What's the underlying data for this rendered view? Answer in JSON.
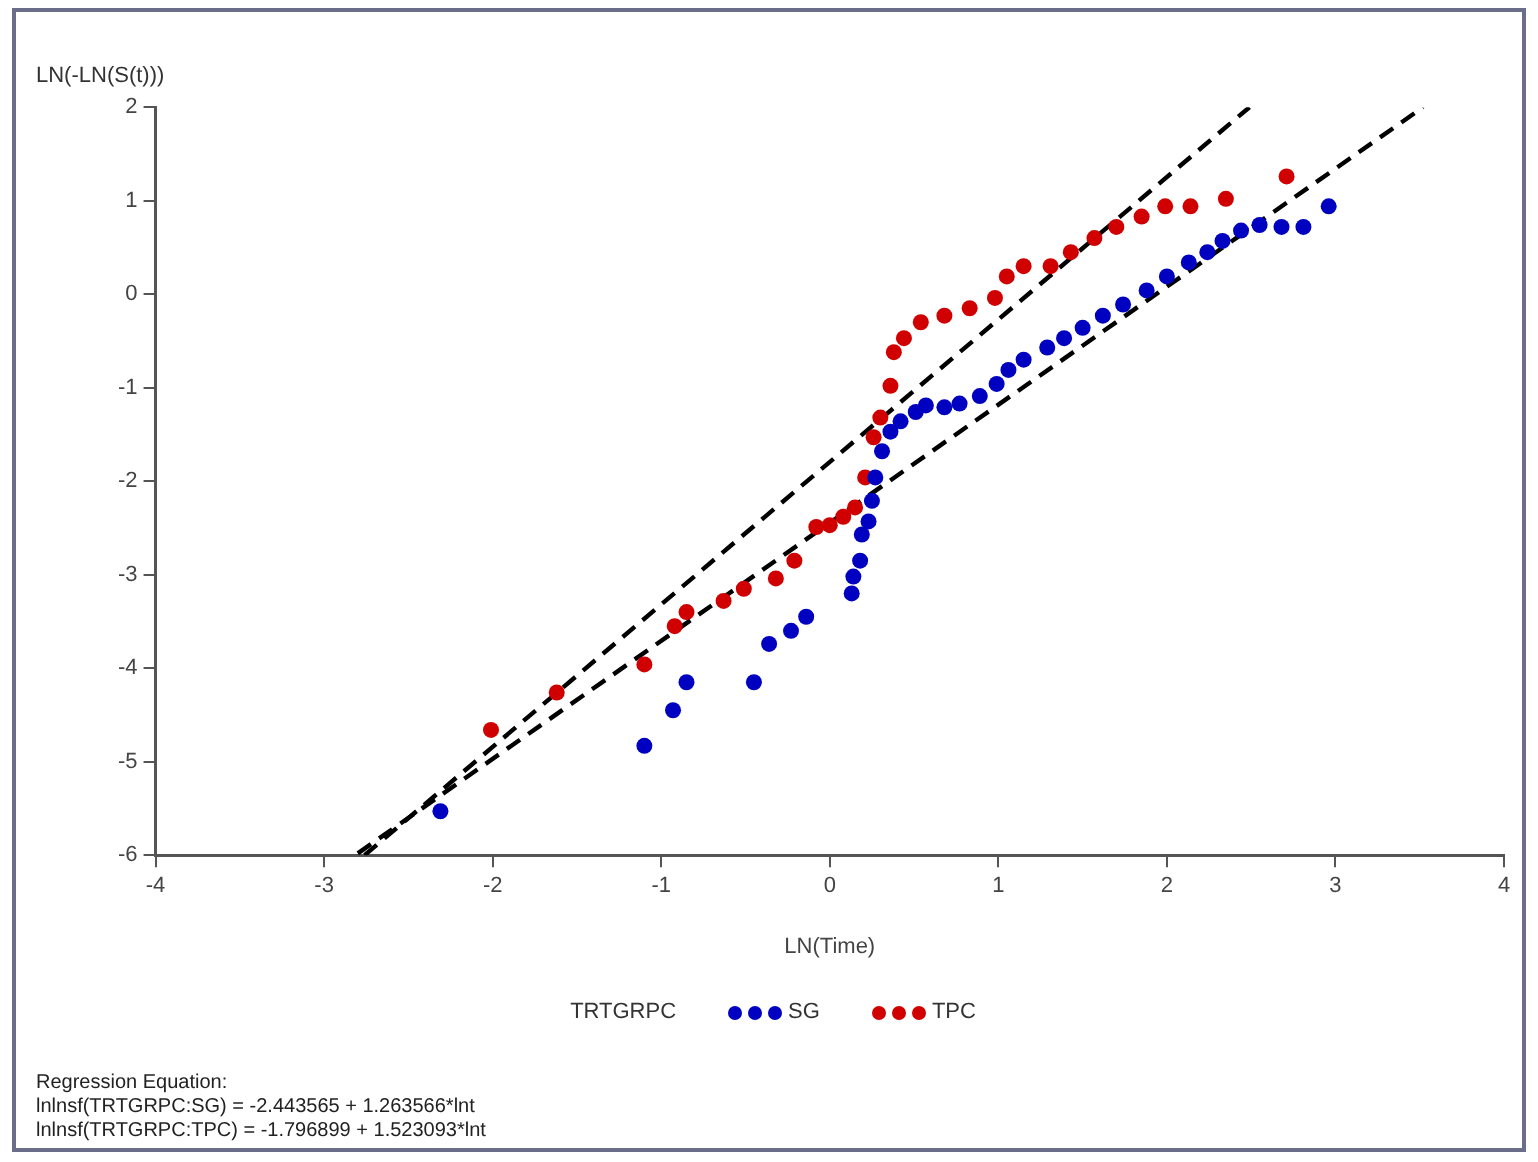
{
  "chart_data": {
    "type": "scatter",
    "xlabel": "LN(Time)",
    "ylabel": "LN(-LN(S(t)))",
    "legend_title": "TRTGRPC",
    "legend": "bottom",
    "grid": false,
    "marker": "circle",
    "xlim": [
      -4,
      4
    ],
    "xticks": [
      -4,
      -3,
      -2,
      -1,
      0,
      1,
      2,
      3,
      4
    ],
    "ylim": [
      -6,
      2
    ],
    "yticks": [
      -6,
      -5,
      -4,
      -3,
      -2,
      -1,
      0,
      1,
      2
    ],
    "series": [
      {
        "name": "SG",
        "color": "#0000c0",
        "x": [
          -2.31,
          -1.1,
          -0.93,
          -0.85,
          -0.45,
          -0.36,
          -0.23,
          -0.14,
          0.13,
          0.14,
          0.18,
          0.19,
          0.23,
          0.25,
          0.27,
          0.31,
          0.36,
          0.42,
          0.51,
          0.57,
          0.68,
          0.77,
          0.89,
          0.99,
          1.06,
          1.15,
          1.29,
          1.39,
          1.5,
          1.62,
          1.74,
          1.88,
          2.0,
          2.13,
          2.24,
          2.33,
          2.44,
          2.55,
          2.68,
          2.81,
          2.96
        ],
        "values": [
          -5.53,
          -4.83,
          -4.45,
          -4.15,
          -4.15,
          -3.74,
          -3.6,
          -3.45,
          -3.2,
          -3.02,
          -2.85,
          -2.57,
          -2.43,
          -2.21,
          -1.96,
          -1.68,
          -1.47,
          -1.36,
          -1.26,
          -1.19,
          -1.21,
          -1.17,
          -1.09,
          -0.96,
          -0.81,
          -0.7,
          -0.57,
          -0.47,
          -0.36,
          -0.23,
          -0.11,
          0.04,
          0.19,
          0.34,
          0.45,
          0.57,
          0.68,
          0.74,
          0.72,
          0.72,
          0.94
        ]
      },
      {
        "name": "TPC",
        "color": "#d00000",
        "x": [
          -2.01,
          -1.62,
          -1.1,
          -0.92,
          -0.85,
          -0.63,
          -0.51,
          -0.32,
          -0.21,
          -0.08,
          0.0,
          0.08,
          0.15,
          0.21,
          0.26,
          0.3,
          0.36,
          0.38,
          0.44,
          0.54,
          0.68,
          0.83,
          0.98,
          1.05,
          1.15,
          1.31,
          1.43,
          1.57,
          1.7,
          1.85,
          1.99,
          2.14,
          2.35,
          2.71
        ],
        "values": [
          -4.66,
          -4.26,
          -3.96,
          -3.55,
          -3.4,
          -3.28,
          -3.15,
          -3.04,
          -2.85,
          -2.49,
          -2.47,
          -2.38,
          -2.28,
          -1.96,
          -1.53,
          -1.32,
          -0.98,
          -0.62,
          -0.47,
          -0.3,
          -0.23,
          -0.15,
          -0.04,
          0.19,
          0.3,
          0.3,
          0.45,
          0.6,
          0.72,
          0.83,
          0.94,
          0.94,
          1.02,
          1.26
        ]
      },
      {
        "type": "line",
        "color": "#000000",
        "line_style": "dashed",
        "marker": "none",
        "x": [
          -2.8,
          3.52
        ],
        "values": [
          -5.98,
          2.0
        ]
      },
      {
        "type": "line",
        "color": "#000000",
        "line_style": "dashed",
        "marker": "none",
        "x": [
          -2.76,
          2.49
        ],
        "values": [
          -6.0,
          2.0
        ]
      }
    ],
    "annotations": [
      "Regression Equation:",
      "lnlnsf(TRTGRPC:SG) = -2.443565 + 1.263566*lnt",
      "lnlnsf(TRTGRPC:TPC) = -1.796899 + 1.523093*lnt"
    ]
  }
}
